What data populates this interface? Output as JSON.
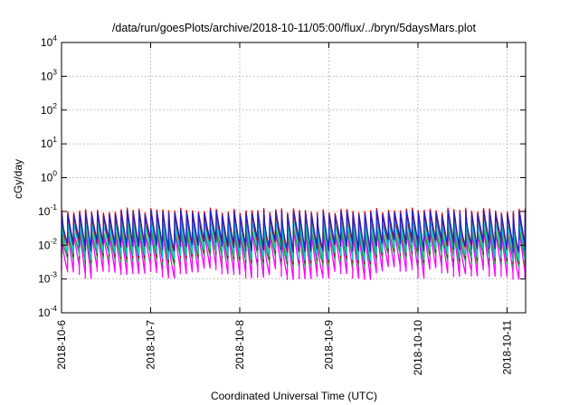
{
  "chart_data": {
    "type": "line",
    "title": "/data/run/goesPlots/archive/2018-10-11/05:00/flux/../bryn/5daysMars.plot",
    "ylabel": "cGy/day",
    "xlabel": "Coordinated Universal Time (UTC)",
    "yscale": "log",
    "ylim": [
      0.0001,
      10000
    ],
    "ytick_base": "10",
    "ytick_exponents": [
      "-4",
      "-3",
      "-2",
      "-1",
      "0",
      "1",
      "2",
      "3",
      "4"
    ],
    "xlim": [
      "2018-10-06T00:00",
      "2018-10-11T05:00"
    ],
    "xticks": [
      "2018-10-6",
      "2018-10-7",
      "2018-10-8",
      "2018-10-9",
      "2018-10-10",
      "2018-10-11"
    ],
    "grid": true,
    "pattern": {
      "period_hours": 1.6,
      "description": "sawtooth: sharp rise then exponential-like decay each period"
    },
    "series": [
      {
        "color": "#ff0000",
        "peak": 0.11,
        "trough": 0.009
      },
      {
        "color": "#8b1a1a",
        "peak": 0.1,
        "trough": 0.005
      },
      {
        "color": "#2222cc",
        "peak": 0.095,
        "trough": 0.011
      },
      {
        "color": "#00ced1",
        "peak": 0.05,
        "trough": 0.006
      },
      {
        "color": "#1a9e3c",
        "peak": 0.03,
        "trough": 0.004
      },
      {
        "color": "#ff00ff",
        "peak": 0.025,
        "trough": 0.0017
      }
    ]
  }
}
